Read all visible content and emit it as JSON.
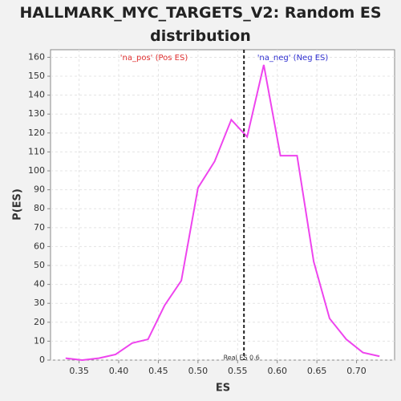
{
  "chart_data": {
    "type": "line",
    "title": "HALLMARK_MYC_TARGETS_V2: Random ES distribution",
    "x_label": "ES",
    "y_label": "P(ES)",
    "x": [
      0.333,
      0.354,
      0.375,
      0.396,
      0.417,
      0.437,
      0.458,
      0.479,
      0.5,
      0.521,
      0.542,
      0.562,
      0.583,
      0.604,
      0.625,
      0.646,
      0.666,
      0.687,
      0.708,
      0.729
    ],
    "series": [
      {
        "name": "P(ES)",
        "color": "#ee44ee",
        "values": [
          1,
          0,
          1,
          3,
          9,
          11,
          29,
          42,
          91,
          105,
          127,
          118,
          156,
          108,
          108,
          52,
          22,
          11,
          4,
          2
        ]
      }
    ],
    "xlim": [
      0.314,
      0.748
    ],
    "ylim": [
      0,
      164
    ],
    "xticks": [
      0.35,
      {
        "value": 0.4,
        "label": "0.40"
      },
      0.45,
      {
        "value": 0.5,
        "label": "0.50"
      },
      0.55,
      {
        "value": 0.6,
        "label": "0.60"
      },
      0.65,
      {
        "value": 0.7,
        "label": "0.70"
      }
    ],
    "yticks": [
      0,
      10,
      20,
      30,
      40,
      50,
      60,
      70,
      80,
      90,
      100,
      110,
      120,
      130,
      140,
      150,
      160
    ],
    "grid": true,
    "real_es": 0.558,
    "real_es_label": "Real ES 0.6",
    "pos_label": "'na_pos' (Pos ES)",
    "pos_color": "#e03030",
    "neg_label": "'na_neg' (Neg ES)",
    "neg_color": "#3030d0"
  }
}
